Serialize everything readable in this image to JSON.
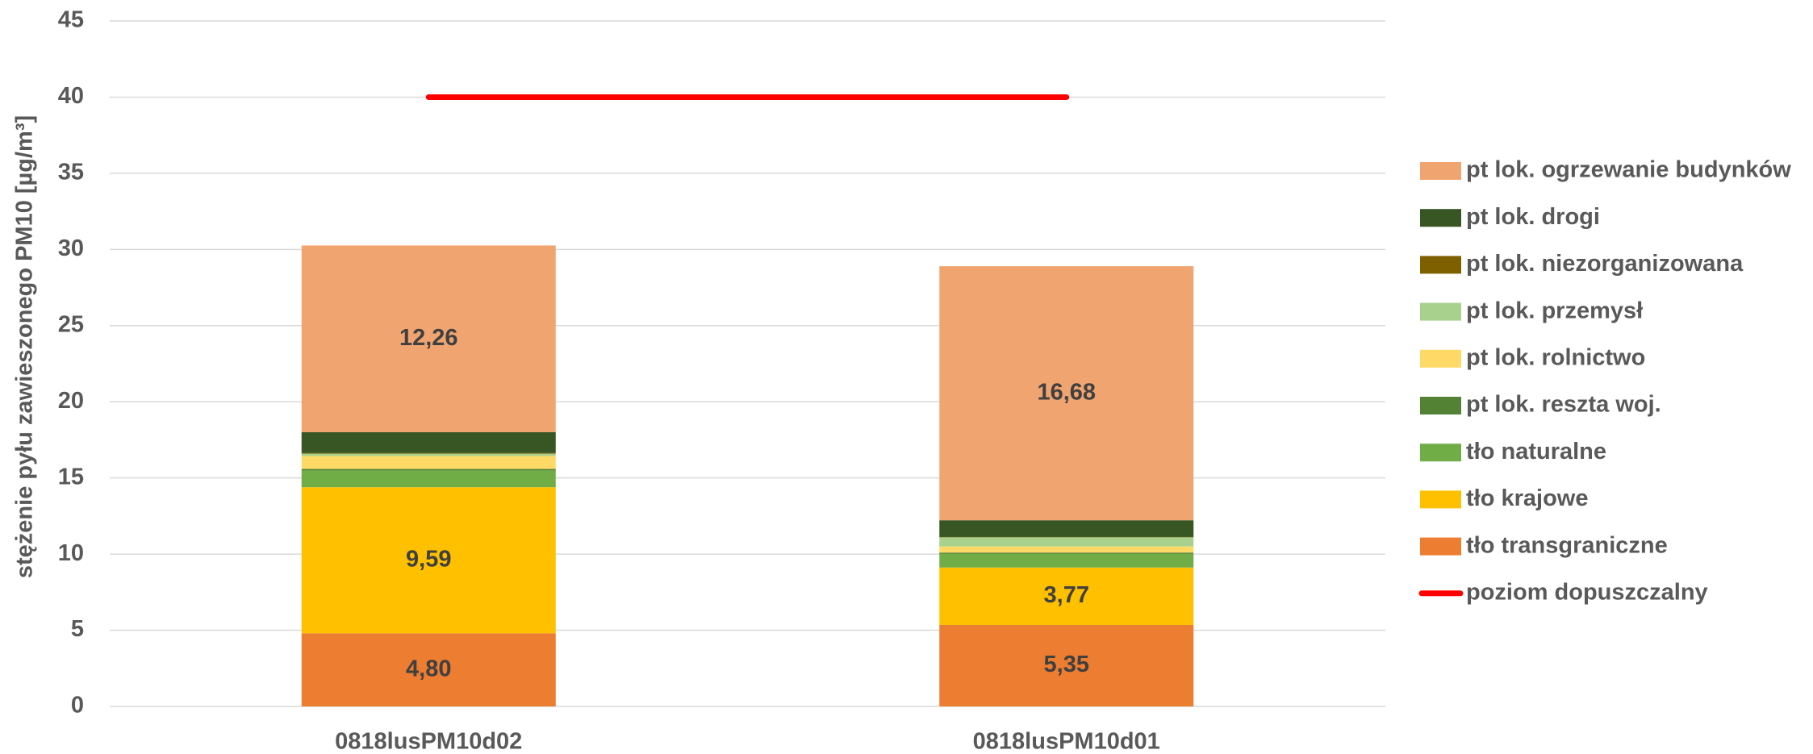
{
  "chart_data": {
    "type": "stacked_bar",
    "ylabel": "stężenie pyłu zawieszonego PM10 [µg/m³]",
    "categories": [
      "0818lusPM10d02",
      "0818lusPM10d01"
    ],
    "ylim": [
      0,
      45
    ],
    "yticks": [
      0,
      5,
      10,
      15,
      20,
      25,
      30,
      35,
      40,
      45
    ],
    "grid": true,
    "legend": "right",
    "series": [
      {
        "name": "tło transgraniczne",
        "color": "#ed7d31",
        "values": [
          4.8,
          5.35
        ],
        "value_labels": [
          "4,80",
          "5,35"
        ]
      },
      {
        "name": "tło krajowe",
        "color": "#ffc000",
        "values": [
          9.59,
          3.77
        ],
        "value_labels": [
          "9,59",
          "3,77"
        ]
      },
      {
        "name": "tło naturalne",
        "color": "#70ad47",
        "values": [
          1.1,
          0.9
        ]
      },
      {
        "name": "pt lok. reszta woj.",
        "color": "#548235",
        "values": [
          0.1,
          0.08
        ]
      },
      {
        "name": "pt lok. rolnictwo",
        "color": "#ffd966",
        "values": [
          0.85,
          0.4
        ]
      },
      {
        "name": "pt lok. przemysł",
        "color": "#a9d18e",
        "values": [
          0.15,
          0.6
        ]
      },
      {
        "name": "pt lok. niezorganizowana",
        "color": "#7f6000",
        "values": [
          0.05,
          0.02
        ]
      },
      {
        "name": "pt lok. drogi",
        "color": "#375623",
        "values": [
          1.36,
          1.1
        ]
      },
      {
        "name": "pt lok. ogrzewanie budynków",
        "color": "#f0a571",
        "values": [
          12.26,
          16.68
        ],
        "value_labels": [
          "12,26",
          "16,68"
        ]
      },
      {
        "name": "poziom dopuszczalny",
        "color": "#ff0000",
        "type": "line",
        "values": [
          40,
          40
        ]
      }
    ]
  }
}
